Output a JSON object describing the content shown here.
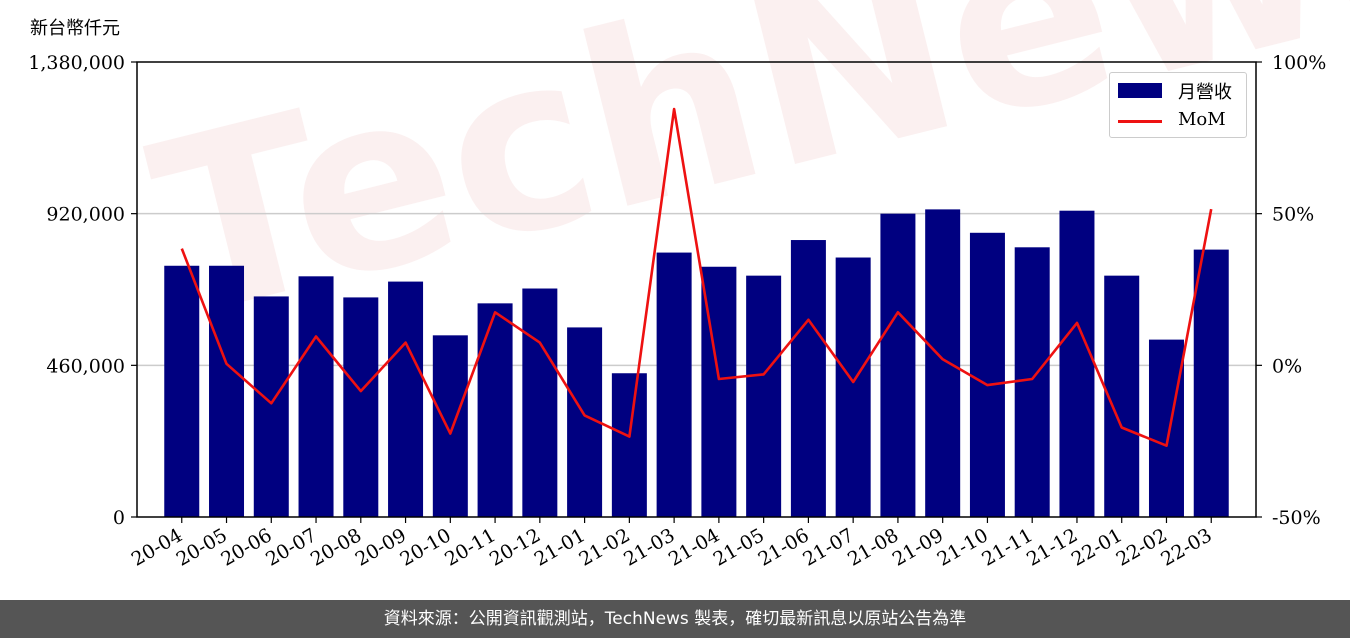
{
  "y_axis_unit": "新台幣仟元",
  "footer_text": "資料來源：公開資訊觀測站，TechNews 製表，確切最新訊息以原站公告為準",
  "watermark": "TechNews",
  "colors": {
    "bar": "#000080",
    "line": "#ee1111",
    "grid": "#cccccc",
    "footer_bg": "#555555"
  },
  "chart_data": {
    "type": "bar",
    "categories": [
      "20-04",
      "20-05",
      "20-06",
      "20-07",
      "20-08",
      "20-09",
      "20-10",
      "20-11",
      "20-12",
      "21-01",
      "21-02",
      "21-03",
      "21-04",
      "21-05",
      "21-06",
      "21-07",
      "21-08",
      "21-09",
      "21-10",
      "21-11",
      "21-12",
      "22-01",
      "22-02",
      "22-03"
    ],
    "series": [
      {
        "name": "月營收",
        "type": "bar",
        "axis": "left",
        "values": [
          762000,
          762000,
          669000,
          730000,
          666000,
          714000,
          551000,
          648000,
          693000,
          575000,
          436000,
          802000,
          759000,
          732000,
          840000,
          787000,
          920000,
          933000,
          862000,
          818000,
          929000,
          732000,
          538000,
          811000
        ]
      },
      {
        "name": "MoM",
        "type": "line",
        "axis": "right",
        "unit": "%",
        "values": [
          38.5,
          0.5,
          -12.5,
          9.5,
          -8.5,
          7.5,
          -22.5,
          17.5,
          7.5,
          -16.5,
          -23.5,
          84.5,
          -4.5,
          -3.0,
          15.0,
          -5.5,
          17.5,
          2.0,
          -6.5,
          -4.5,
          14.0,
          -20.5,
          -26.5,
          51.5
        ]
      }
    ],
    "y_left": {
      "ylim": [
        0,
        1380000
      ],
      "ticks": [
        "0",
        "460,000",
        "920,000",
        "1,380,000"
      ],
      "tick_values": [
        0,
        460000,
        920000,
        1380000
      ]
    },
    "y_right": {
      "ylim": [
        -50,
        100
      ],
      "ticks": [
        "-50%",
        "0%",
        "50%",
        "100%"
      ],
      "tick_values": [
        -50,
        0,
        50,
        100
      ]
    },
    "grid": "horizontal",
    "legend_position": "top-right"
  }
}
